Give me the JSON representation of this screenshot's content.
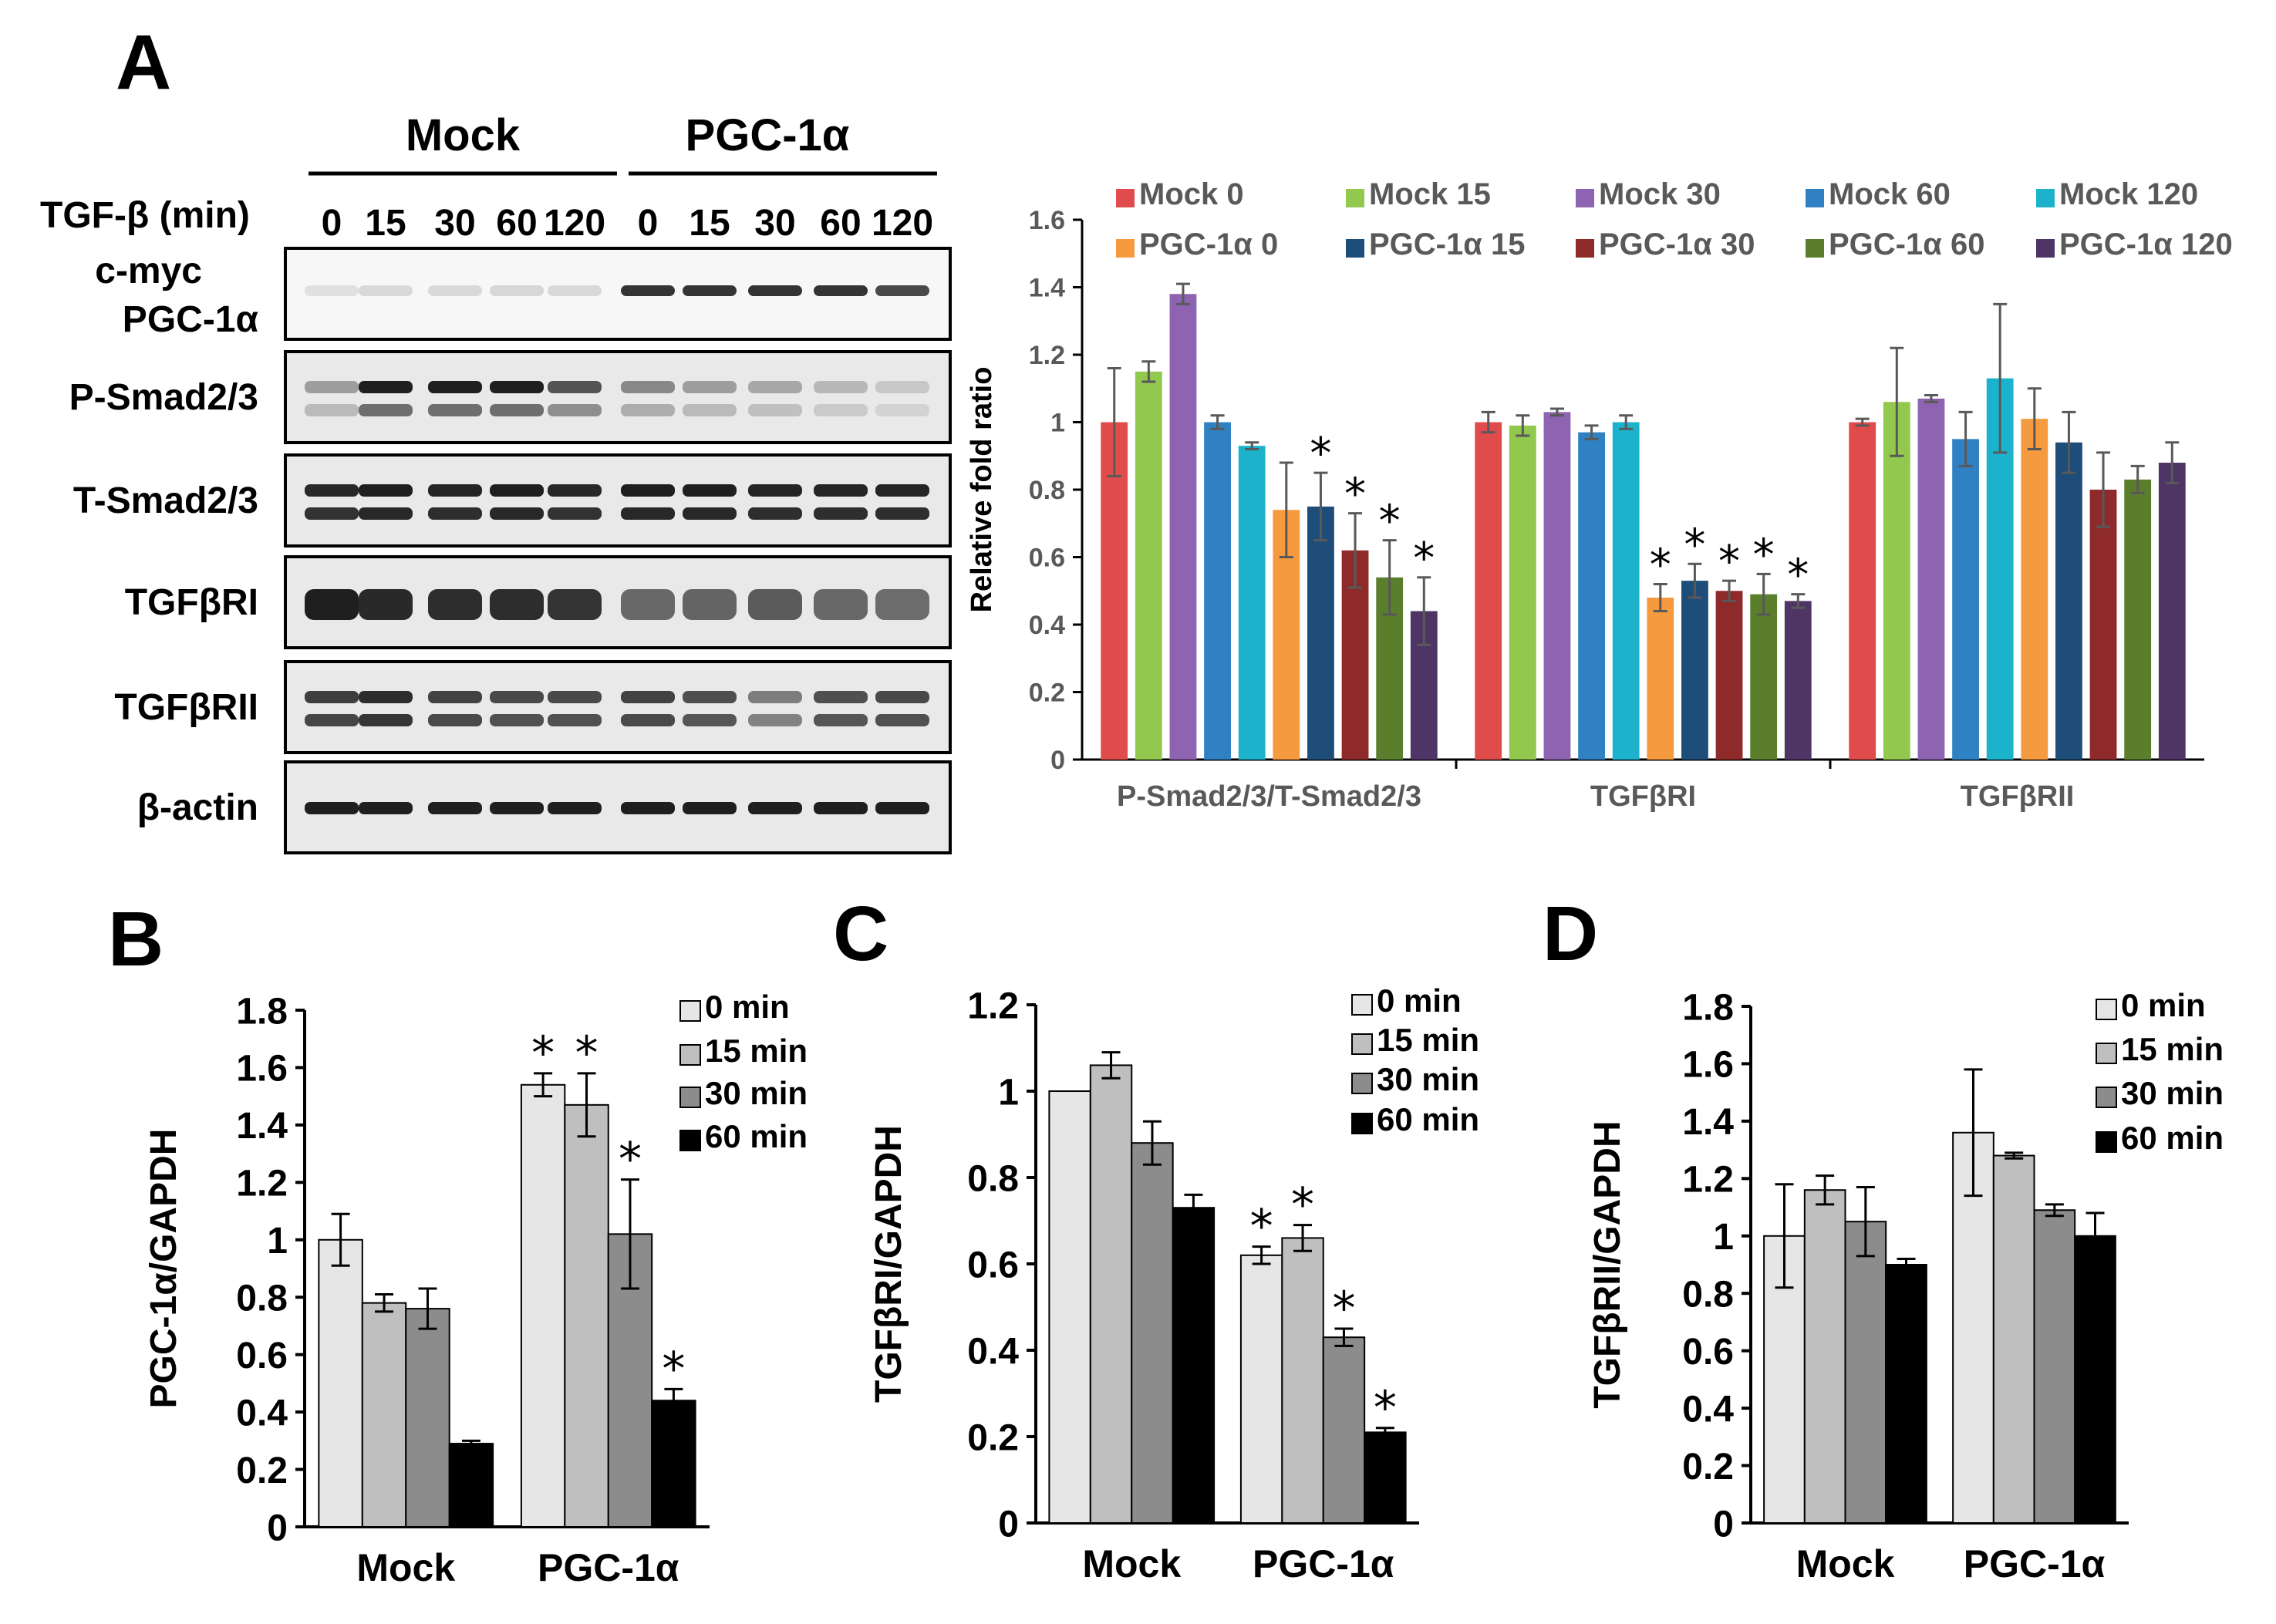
{
  "panels": {
    "A": "A",
    "B": "B",
    "C": "C",
    "D": "D"
  },
  "blot": {
    "group_labels": [
      "Mock",
      "PGC-1α"
    ],
    "time_header": "TGF-β (min)",
    "lanes": [
      "0",
      "15",
      "30",
      "60",
      "120",
      "0",
      "15",
      "30",
      "60",
      "120"
    ],
    "rows": [
      {
        "name": "c-myc\nPGC-1α",
        "lines": [
          "c-myc",
          "PGC-1α"
        ],
        "mock": [
          0.03,
          0.06,
          0.06,
          0.07,
          0.06
        ],
        "pgc": [
          0.85,
          0.85,
          0.85,
          0.85,
          0.75
        ]
      },
      {
        "name": "P-Smad2/3",
        "lines": [
          "P-Smad2/3"
        ],
        "mock": [
          0.35,
          0.95,
          0.95,
          0.95,
          0.7
        ],
        "pgc": [
          0.45,
          0.35,
          0.3,
          0.22,
          0.15
        ]
      },
      {
        "name": "T-Smad2/3",
        "lines": [
          "T-Smad2/3"
        ],
        "mock": [
          0.9,
          0.95,
          0.92,
          0.95,
          0.9
        ],
        "pgc": [
          0.95,
          0.95,
          0.92,
          0.92,
          0.92
        ]
      },
      {
        "name": "TGFβRI",
        "lines": [
          "TGFβRI"
        ],
        "mock": [
          0.95,
          0.9,
          0.88,
          0.88,
          0.85
        ],
        "pgc": [
          0.6,
          0.62,
          0.66,
          0.6,
          0.58
        ]
      },
      {
        "name": "TGFβRII",
        "lines": [
          "TGFβRII"
        ],
        "mock": [
          0.8,
          0.88,
          0.78,
          0.75,
          0.75
        ],
        "pgc": [
          0.78,
          0.72,
          0.5,
          0.72,
          0.75
        ]
      },
      {
        "name": "β-actin",
        "lines": [
          "β-actin"
        ],
        "mock": [
          0.95,
          0.95,
          0.95,
          0.95,
          0.95
        ],
        "pgc": [
          0.95,
          0.95,
          0.95,
          0.95,
          0.95
        ]
      }
    ]
  },
  "chart_data": [
    {
      "id": "A",
      "type": "bar",
      "title": "",
      "xlabel": "",
      "ylabel": "Relative fold ratio",
      "ylim": [
        0,
        1.6
      ],
      "yticks": [
        "0",
        "0.2",
        "0.4",
        "0.6",
        "0.8",
        "1",
        "1.2",
        "1.4",
        "1.6"
      ],
      "categories": [
        "P-Smad2/3/T-Smad2/3",
        "TGFβRI",
        "TGFβRII"
      ],
      "legend": "top",
      "series": [
        {
          "name": "Mock 0",
          "color": "#E04B4B",
          "values": [
            1.0,
            1.0,
            1.0
          ],
          "errors": [
            0.16,
            0.03,
            0.01
          ],
          "stars": [
            false,
            false,
            false
          ]
        },
        {
          "name": "Mock 15",
          "color": "#92C84E",
          "values": [
            1.15,
            0.99,
            1.06
          ],
          "errors": [
            0.03,
            0.03,
            0.16
          ],
          "stars": [
            false,
            false,
            false
          ]
        },
        {
          "name": "Mock 30",
          "color": "#8E63B1",
          "values": [
            1.38,
            1.03,
            1.07
          ],
          "errors": [
            0.03,
            0.01,
            0.01
          ],
          "stars": [
            false,
            false,
            false
          ]
        },
        {
          "name": "Mock 60",
          "color": "#2F81C3",
          "values": [
            1.0,
            0.97,
            0.95
          ],
          "errors": [
            0.02,
            0.02,
            0.08
          ],
          "stars": [
            false,
            false,
            false
          ]
        },
        {
          "name": "Mock 120",
          "color": "#1DB2CC",
          "values": [
            0.93,
            1.0,
            1.13
          ],
          "errors": [
            0.01,
            0.02,
            0.22
          ],
          "stars": [
            false,
            false,
            false
          ]
        },
        {
          "name": "PGC-1α 0",
          "color": "#F59A3E",
          "values": [
            0.74,
            0.48,
            1.01
          ],
          "errors": [
            0.14,
            0.04,
            0.09
          ],
          "stars": [
            false,
            true,
            false
          ]
        },
        {
          "name": "PGC-1α 15",
          "color": "#1D4D78",
          "values": [
            0.75,
            0.53,
            0.94
          ],
          "errors": [
            0.1,
            0.05,
            0.09
          ],
          "stars": [
            true,
            true,
            false
          ]
        },
        {
          "name": "PGC-1α 30",
          "color": "#8E2A2A",
          "values": [
            0.62,
            0.5,
            0.8
          ],
          "errors": [
            0.11,
            0.03,
            0.11
          ],
          "stars": [
            true,
            true,
            false
          ]
        },
        {
          "name": "PGC-1α 60",
          "color": "#5A7E2B",
          "values": [
            0.54,
            0.49,
            0.83
          ],
          "errors": [
            0.11,
            0.06,
            0.04
          ],
          "stars": [
            true,
            true,
            false
          ]
        },
        {
          "name": "PGC-1α 120",
          "color": "#4E3566",
          "values": [
            0.44,
            0.47,
            0.88
          ],
          "errors": [
            0.1,
            0.02,
            0.06
          ],
          "stars": [
            true,
            true,
            false
          ]
        }
      ]
    },
    {
      "id": "B",
      "type": "bar",
      "title": "",
      "xlabel": "",
      "ylabel": "PGC-1α/GAPDH",
      "ylim": [
        0,
        1.8
      ],
      "yticks": [
        "0",
        "0.2",
        "0.4",
        "0.6",
        "0.8",
        "1",
        "1.2",
        "1.4",
        "1.6",
        "1.8"
      ],
      "categories": [
        "Mock",
        "PGC-1α"
      ],
      "legend": "top-right",
      "series": [
        {
          "name": "0 min",
          "color": "#E6E6E6",
          "values": [
            1.0,
            1.54
          ],
          "errors": [
            0.09,
            0.04
          ],
          "stars": [
            false,
            true
          ]
        },
        {
          "name": "15 min",
          "color": "#BFBFBF",
          "values": [
            0.78,
            1.47
          ],
          "errors": [
            0.03,
            0.11
          ],
          "stars": [
            false,
            true
          ]
        },
        {
          "name": "30 min",
          "color": "#8C8C8C",
          "values": [
            0.76,
            1.02
          ],
          "errors": [
            0.07,
            0.19
          ],
          "stars": [
            false,
            true
          ]
        },
        {
          "name": "60 min",
          "color": "#000000",
          "values": [
            0.29,
            0.44
          ],
          "errors": [
            0.01,
            0.04
          ],
          "stars": [
            false,
            true
          ]
        }
      ]
    },
    {
      "id": "C",
      "type": "bar",
      "title": "",
      "xlabel": "",
      "ylabel": "TGFβRI/GAPDH",
      "ylim": [
        0,
        1.2
      ],
      "yticks": [
        "0",
        "0.2",
        "0.4",
        "0.6",
        "0.8",
        "1",
        "1.2"
      ],
      "categories": [
        "Mock",
        "PGC-1α"
      ],
      "legend": "top-right",
      "series": [
        {
          "name": "0 min",
          "color": "#E6E6E6",
          "values": [
            1.0,
            0.62
          ],
          "errors": [
            0.0,
            0.02
          ],
          "stars": [
            false,
            true
          ]
        },
        {
          "name": "15 min",
          "color": "#BFBFBF",
          "values": [
            1.06,
            0.66
          ],
          "errors": [
            0.03,
            0.03
          ],
          "stars": [
            false,
            true
          ]
        },
        {
          "name": "30 min",
          "color": "#8C8C8C",
          "values": [
            0.88,
            0.43
          ],
          "errors": [
            0.05,
            0.02
          ],
          "stars": [
            false,
            true
          ]
        },
        {
          "name": "60 min",
          "color": "#000000",
          "values": [
            0.73,
            0.21
          ],
          "errors": [
            0.03,
            0.01
          ],
          "stars": [
            false,
            true
          ]
        }
      ]
    },
    {
      "id": "D",
      "type": "bar",
      "title": "",
      "xlabel": "",
      "ylabel": "TGFβRII/GAPDH",
      "ylim": [
        0,
        1.8
      ],
      "yticks": [
        "0",
        "0.2",
        "0.4",
        "0.6",
        "0.8",
        "1",
        "1.2",
        "1.4",
        "1.6",
        "1.8"
      ],
      "categories": [
        "Mock",
        "PGC-1α"
      ],
      "legend": "top-right",
      "series": [
        {
          "name": "0 min",
          "color": "#E6E6E6",
          "values": [
            1.0,
            1.36
          ],
          "errors": [
            0.18,
            0.22
          ],
          "stars": [
            false,
            false
          ]
        },
        {
          "name": "15 min",
          "color": "#BFBFBF",
          "values": [
            1.16,
            1.28
          ],
          "errors": [
            0.05,
            0.01
          ],
          "stars": [
            false,
            false
          ]
        },
        {
          "name": "30 min",
          "color": "#8C8C8C",
          "values": [
            1.05,
            1.09
          ],
          "errors": [
            0.12,
            0.02
          ],
          "stars": [
            false,
            false
          ]
        },
        {
          "name": "60 min",
          "color": "#000000",
          "values": [
            0.9,
            1.0
          ],
          "errors": [
            0.02,
            0.08
          ],
          "stars": [
            false,
            false
          ]
        }
      ]
    }
  ]
}
